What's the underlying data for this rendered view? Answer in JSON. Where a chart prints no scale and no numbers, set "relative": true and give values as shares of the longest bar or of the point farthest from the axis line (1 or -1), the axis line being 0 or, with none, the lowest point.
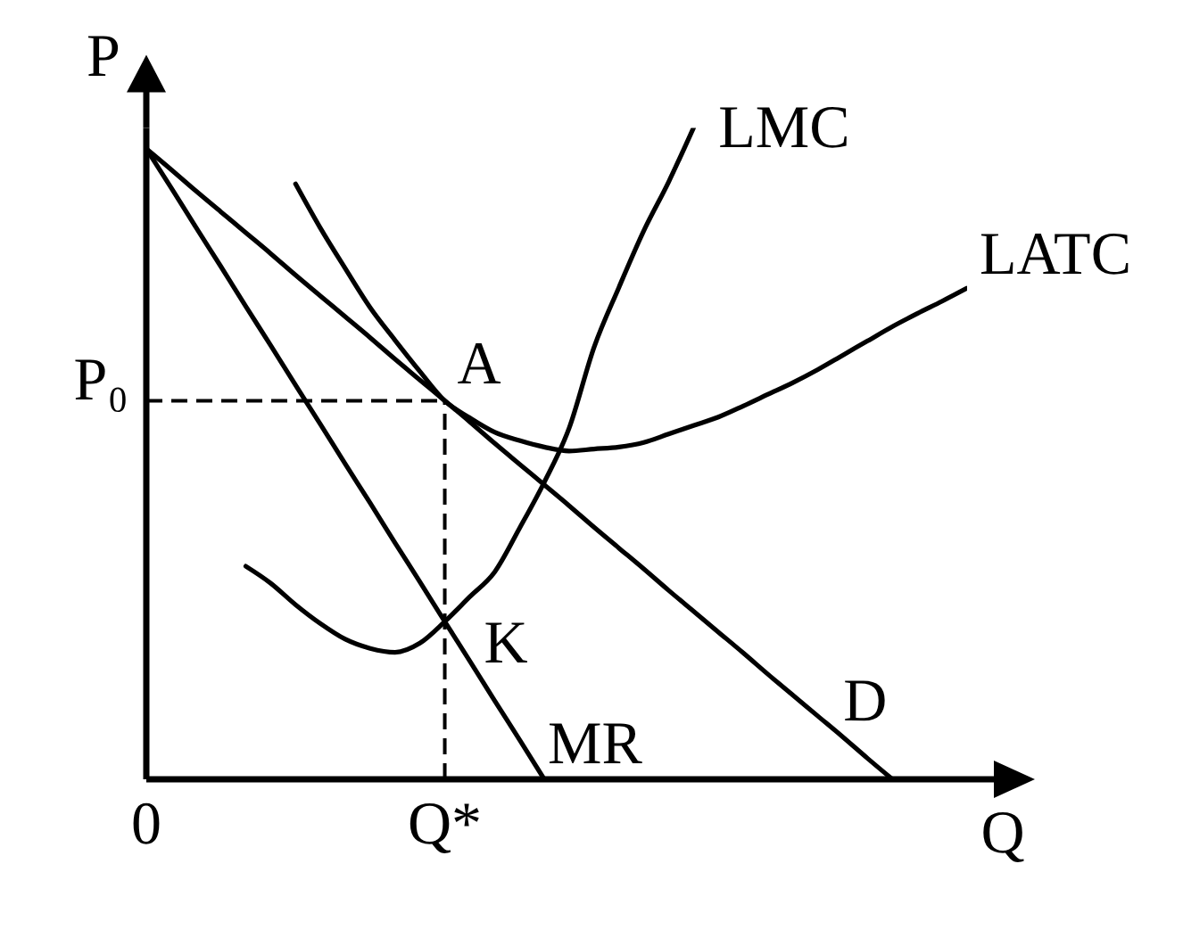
{
  "chart_data": {
    "type": "line",
    "relative": true,
    "xlabel": "Q",
    "ylabel": "P",
    "categories": [
      "0",
      null,
      null,
      null,
      null,
      null,
      null,
      null,
      null,
      null,
      null,
      null,
      "Q*",
      null,
      null,
      null,
      null,
      null,
      null,
      null,
      null,
      null,
      null,
      null,
      null,
      null,
      null,
      null,
      null,
      null,
      null,
      null,
      null,
      null
    ],
    "series": [
      {
        "name": "LMC",
        "color": "#000000",
        "values": [
          null,
          null,
          null,
          null,
          0.327,
          0.301,
          0.268,
          0.239,
          0.215,
          0.201,
          0.195,
          0.209,
          0.242,
          0.28,
          0.318,
          0.385,
          0.456,
          0.539,
          0.663,
          0.755,
          0.842,
          0.917,
          1.0,
          null,
          null,
          null,
          null,
          null,
          null,
          null,
          null,
          null,
          null,
          null
        ]
      },
      {
        "name": "LATC",
        "color": "#000000",
        "values": [
          null,
          null,
          null,
          null,
          null,
          null,
          0.914,
          0.846,
          0.784,
          0.724,
          0.674,
          0.626,
          0.581,
          0.555,
          0.533,
          0.52,
          0.51,
          0.504,
          0.507,
          0.51,
          0.517,
          0.53,
          0.543,
          0.556,
          0.573,
          0.591,
          0.609,
          0.629,
          0.651,
          0.673,
          0.695,
          0.715,
          0.734,
          0.754
        ]
      },
      {
        "name": "D",
        "color": "#000000",
        "values": [
          0.968,
          0.936,
          0.903,
          0.871,
          0.839,
          0.807,
          0.774,
          0.742,
          0.71,
          0.678,
          0.645,
          0.613,
          0.581,
          0.549,
          0.516,
          0.484,
          0.452,
          0.42,
          0.387,
          0.355,
          0.323,
          0.29,
          0.258,
          0.226,
          0.194,
          0.161,
          0.129,
          0.097,
          0.065,
          0.032,
          0,
          null,
          null,
          null
        ]
      },
      {
        "name": "MR",
        "color": "#000000",
        "values": [
          0.968,
          0.908,
          0.847,
          0.787,
          0.726,
          0.666,
          0.605,
          0.545,
          0.484,
          0.424,
          0.363,
          0.303,
          0.242,
          0.182,
          0.121,
          0.061,
          0,
          null,
          null,
          null,
          null,
          null,
          null,
          null,
          null,
          null,
          null,
          null,
          null,
          null,
          null,
          null,
          null,
          null
        ]
      }
    ],
    "ref_lines": [
      {
        "axis": "y",
        "value": 0.581,
        "label": "P₀",
        "color": "#000000",
        "line_style": "dashed"
      },
      {
        "axis": "x",
        "value": "Q*",
        "color": "#000000",
        "line_style": "dashed"
      }
    ],
    "annotations": [
      {
        "text": "A",
        "x": "Q*",
        "y": 0.581
      },
      {
        "text": "K",
        "x": "Q*",
        "y": 0.242
      }
    ]
  }
}
